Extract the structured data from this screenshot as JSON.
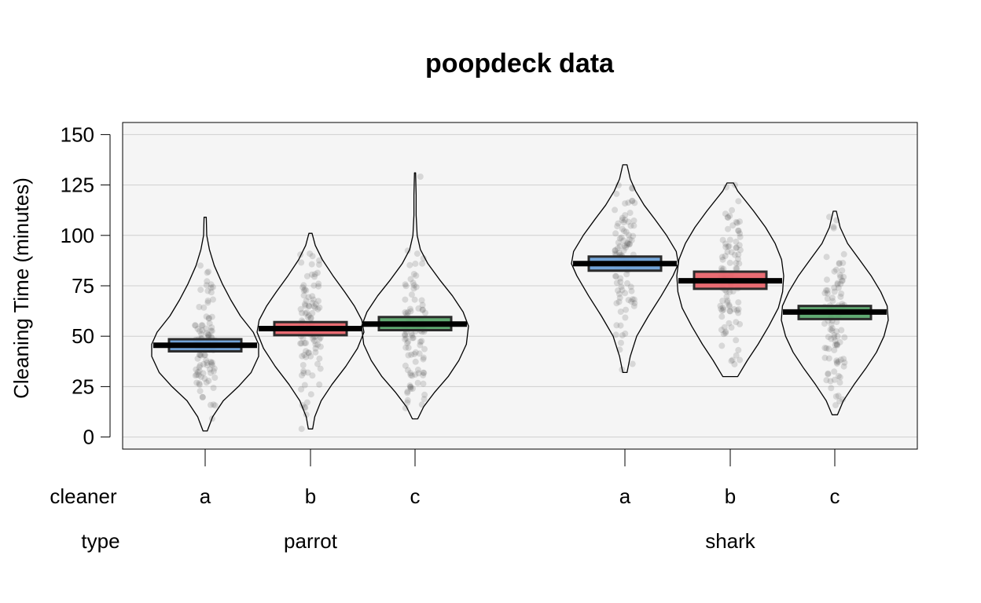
{
  "chart_data": {
    "type": "pirateplot",
    "title": "poopdeck data",
    "ylabel": "Cleaning Time (minutes)",
    "ylim": [
      -6,
      156
    ],
    "yticks": [
      0,
      25,
      50,
      75,
      100,
      125,
      150
    ],
    "grid": true,
    "row_labels": {
      "cleaner": "cleaner",
      "type": "type"
    },
    "type_groups": [
      {
        "label": "parrot",
        "cleaners": [
          "a",
          "b",
          "c"
        ]
      },
      {
        "label": "shark",
        "cleaners": [
          "a",
          "b",
          "c"
        ]
      }
    ],
    "groups": [
      {
        "type": "parrot",
        "cleaner": "a",
        "mean": 45.5,
        "ci": [
          42.5,
          48.5
        ],
        "min": 3,
        "max": 109,
        "color": "#6b9fd6",
        "density": [
          [
            3,
            0.04
          ],
          [
            10,
            0.14
          ],
          [
            18,
            0.34
          ],
          [
            25,
            0.62
          ],
          [
            32,
            0.86
          ],
          [
            40,
            1.0
          ],
          [
            46,
            1.0
          ],
          [
            52,
            0.9
          ],
          [
            60,
            0.66
          ],
          [
            68,
            0.48
          ],
          [
            76,
            0.32
          ],
          [
            85,
            0.17
          ],
          [
            93,
            0.08
          ],
          [
            100,
            0.03
          ],
          [
            109,
            0.02
          ]
        ]
      },
      {
        "type": "parrot",
        "cleaner": "b",
        "mean": 53.8,
        "ci": [
          50.5,
          57
        ],
        "min": 4,
        "max": 101,
        "color": "#e8646c",
        "density": [
          [
            4,
            0.04
          ],
          [
            10,
            0.08
          ],
          [
            18,
            0.2
          ],
          [
            26,
            0.4
          ],
          [
            35,
            0.66
          ],
          [
            44,
            0.88
          ],
          [
            52,
            1.0
          ],
          [
            58,
            0.96
          ],
          [
            65,
            0.82
          ],
          [
            72,
            0.64
          ],
          [
            80,
            0.42
          ],
          [
            88,
            0.22
          ],
          [
            95,
            0.09
          ],
          [
            101,
            0.03
          ]
        ]
      },
      {
        "type": "parrot",
        "cleaner": "c",
        "mean": 56,
        "ci": [
          53,
          59.5
        ],
        "min": 9,
        "max": 131,
        "color": "#59a56a",
        "density": [
          [
            9,
            0.05
          ],
          [
            15,
            0.16
          ],
          [
            22,
            0.36
          ],
          [
            30,
            0.62
          ],
          [
            38,
            0.82
          ],
          [
            46,
            0.96
          ],
          [
            55,
            1.0
          ],
          [
            62,
            0.9
          ],
          [
            70,
            0.7
          ],
          [
            78,
            0.46
          ],
          [
            86,
            0.24
          ],
          [
            93,
            0.1
          ],
          [
            100,
            0.04
          ],
          [
            110,
            0.02
          ],
          [
            120,
            0.02
          ],
          [
            131,
            0.01
          ]
        ]
      },
      {
        "type": "shark",
        "cleaner": "a",
        "mean": 86,
        "ci": [
          82.5,
          89.5
        ],
        "min": 32,
        "max": 135,
        "color": "#6b9fd6",
        "density": [
          [
            32,
            0.04
          ],
          [
            40,
            0.1
          ],
          [
            50,
            0.22
          ],
          [
            60,
            0.44
          ],
          [
            70,
            0.68
          ],
          [
            80,
            0.9
          ],
          [
            86,
            1.0
          ],
          [
            92,
            0.96
          ],
          [
            100,
            0.78
          ],
          [
            108,
            0.56
          ],
          [
            115,
            0.36
          ],
          [
            122,
            0.2
          ],
          [
            128,
            0.1
          ],
          [
            135,
            0.04
          ]
        ]
      },
      {
        "type": "shark",
        "cleaner": "b",
        "mean": 77.5,
        "ci": [
          73.5,
          82
        ],
        "min": 30,
        "max": 126,
        "color": "#e8646c",
        "density": [
          [
            30,
            0.14
          ],
          [
            38,
            0.32
          ],
          [
            46,
            0.52
          ],
          [
            55,
            0.72
          ],
          [
            64,
            0.9
          ],
          [
            72,
            0.98
          ],
          [
            80,
            1.0
          ],
          [
            88,
            0.96
          ],
          [
            96,
            0.84
          ],
          [
            104,
            0.66
          ],
          [
            112,
            0.44
          ],
          [
            118,
            0.26
          ],
          [
            122,
            0.14
          ],
          [
            126,
            0.06
          ]
        ]
      },
      {
        "type": "shark",
        "cleaner": "c",
        "mean": 62,
        "ci": [
          58.5,
          65
        ],
        "min": 11,
        "max": 112,
        "color": "#59a56a",
        "density": [
          [
            11,
            0.05
          ],
          [
            18,
            0.16
          ],
          [
            26,
            0.36
          ],
          [
            34,
            0.58
          ],
          [
            42,
            0.78
          ],
          [
            50,
            0.92
          ],
          [
            58,
            1.0
          ],
          [
            65,
            0.98
          ],
          [
            72,
            0.86
          ],
          [
            80,
            0.68
          ],
          [
            88,
            0.46
          ],
          [
            96,
            0.24
          ],
          [
            104,
            0.1
          ],
          [
            112,
            0.03
          ]
        ]
      }
    ]
  }
}
